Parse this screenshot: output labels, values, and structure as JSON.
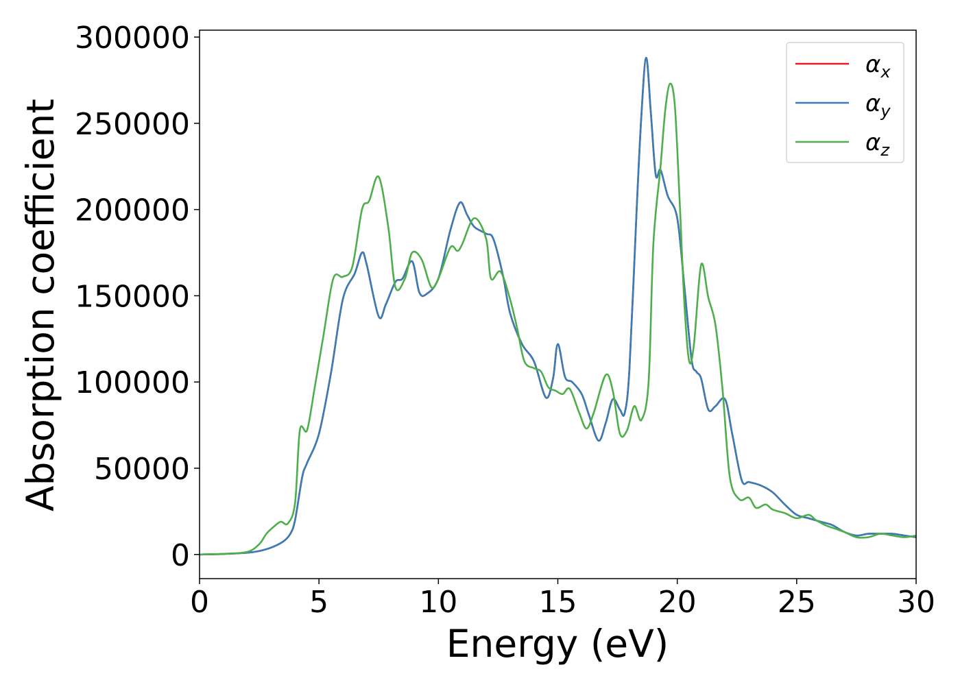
{
  "chart_data": {
    "type": "line",
    "title": "",
    "xlabel": "Energy (eV)",
    "ylabel": "Absorption coefficient",
    "xlim": [
      0,
      30
    ],
    "ylim": [
      -14000,
      304000
    ],
    "xticks": [
      0,
      5,
      10,
      15,
      20,
      25,
      30
    ],
    "xtick_labels": [
      "0",
      "5",
      "10",
      "15",
      "20",
      "25",
      "30"
    ],
    "yticks": [
      0,
      50000,
      100000,
      150000,
      200000,
      250000,
      300000
    ],
    "ytick_labels": [
      "0",
      "50000",
      "100000",
      "150000",
      "200000",
      "250000",
      "300000"
    ],
    "grid": false,
    "legend_position": "top-right",
    "series": [
      {
        "name": "α_x",
        "legend_base": "α",
        "legend_sub": "x",
        "color": "#e41a1c",
        "x": [
          0,
          1,
          2,
          2.5,
          3,
          3.5,
          3.8,
          4.0,
          4.3,
          4.5,
          5.0,
          5.5,
          6.0,
          6.5,
          6.8,
          7.0,
          7.5,
          7.8,
          8.2,
          8.5,
          8.9,
          9.2,
          9.5,
          10.0,
          10.5,
          10.9,
          11.2,
          11.5,
          12.0,
          12.3,
          12.7,
          13.0,
          13.5,
          14.0,
          14.5,
          14.8,
          15.0,
          15.3,
          15.6,
          16.0,
          16.3,
          16.7,
          17.0,
          17.3,
          17.6,
          17.8,
          18.0,
          18.3,
          18.5,
          18.7,
          18.9,
          19.1,
          19.3,
          19.6,
          20.0,
          20.3,
          20.6,
          20.8,
          21.0,
          21.3,
          21.6,
          22.0,
          22.3,
          22.7,
          23.0,
          23.5,
          24.0,
          24.5,
          25.0,
          25.5,
          26.0,
          26.5,
          27.0,
          27.5,
          28.0,
          28.5,
          29.0,
          29.5,
          30.0
        ],
        "y": [
          0,
          300,
          1000,
          2000,
          4000,
          7500,
          12000,
          20000,
          45000,
          53000,
          70000,
          105000,
          148000,
          163000,
          175000,
          168000,
          138000,
          145000,
          158000,
          160000,
          170000,
          152000,
          151000,
          160000,
          188000,
          204000,
          197000,
          190000,
          186000,
          183000,
          162000,
          140000,
          122000,
          112000,
          91000,
          102000,
          122000,
          103000,
          100000,
          93000,
          81000,
          66000,
          76000,
          90000,
          84000,
          82000,
          108000,
          200000,
          255000,
          288000,
          255000,
          220000,
          223000,
          208000,
          195000,
          155000,
          113000,
          106000,
          102000,
          84000,
          86000,
          90000,
          70000,
          43000,
          42000,
          40000,
          36000,
          29000,
          23000,
          21000,
          19000,
          17000,
          13000,
          11000,
          12000,
          12000,
          12000,
          11000,
          10000
        ]
      },
      {
        "name": "α_y",
        "legend_base": "α",
        "legend_sub": "y",
        "color": "#377eb8",
        "x": [
          0,
          1,
          2,
          2.5,
          3,
          3.5,
          3.8,
          4.0,
          4.3,
          4.5,
          5.0,
          5.5,
          6.0,
          6.5,
          6.8,
          7.0,
          7.5,
          7.8,
          8.2,
          8.5,
          8.9,
          9.2,
          9.5,
          10.0,
          10.5,
          10.9,
          11.2,
          11.5,
          12.0,
          12.3,
          12.7,
          13.0,
          13.5,
          14.0,
          14.5,
          14.8,
          15.0,
          15.3,
          15.6,
          16.0,
          16.3,
          16.7,
          17.0,
          17.3,
          17.6,
          17.8,
          18.0,
          18.3,
          18.5,
          18.7,
          18.9,
          19.1,
          19.3,
          19.6,
          20.0,
          20.3,
          20.6,
          20.8,
          21.0,
          21.3,
          21.6,
          22.0,
          22.3,
          22.7,
          23.0,
          23.5,
          24.0,
          24.5,
          25.0,
          25.5,
          26.0,
          26.5,
          27.0,
          27.5,
          28.0,
          28.5,
          29.0,
          29.5,
          30.0
        ],
        "y": [
          0,
          300,
          1000,
          2000,
          4000,
          7500,
          12000,
          20000,
          45000,
          53000,
          70000,
          105000,
          148000,
          163000,
          175000,
          168000,
          138000,
          145000,
          158000,
          160000,
          170000,
          152000,
          151000,
          160000,
          188000,
          204000,
          197000,
          190000,
          186000,
          183000,
          162000,
          140000,
          122000,
          112000,
          91000,
          102000,
          122000,
          103000,
          100000,
          93000,
          81000,
          66000,
          76000,
          90000,
          84000,
          82000,
          108000,
          200000,
          255000,
          288000,
          255000,
          220000,
          223000,
          208000,
          195000,
          155000,
          113000,
          106000,
          102000,
          84000,
          86000,
          90000,
          70000,
          43000,
          42000,
          40000,
          36000,
          29000,
          23000,
          21000,
          19000,
          17000,
          13000,
          11000,
          12000,
          12000,
          12000,
          11000,
          10000
        ]
      },
      {
        "name": "α_z",
        "legend_base": "α",
        "legend_sub": "z",
        "color": "#4daf4a",
        "x": [
          0,
          1,
          2,
          2.5,
          2.8,
          3.1,
          3.4,
          3.7,
          4.0,
          4.2,
          4.5,
          4.8,
          5.2,
          5.6,
          6.0,
          6.4,
          6.8,
          7.1,
          7.5,
          7.9,
          8.2,
          8.6,
          8.9,
          9.3,
          9.7,
          10.0,
          10.5,
          10.8,
          11.0,
          11.5,
          12.0,
          12.2,
          12.6,
          13.0,
          13.3,
          13.6,
          14.0,
          14.3,
          14.6,
          14.9,
          15.2,
          15.5,
          15.9,
          16.2,
          16.5,
          17.0,
          17.3,
          17.6,
          17.9,
          18.2,
          18.5,
          18.8,
          19.0,
          19.3,
          19.5,
          19.7,
          19.9,
          20.1,
          20.3,
          20.5,
          20.7,
          21.0,
          21.3,
          21.6,
          21.9,
          22.2,
          22.6,
          23.0,
          23.3,
          23.7,
          24.0,
          24.5,
          25.0,
          25.5,
          25.8,
          26.2,
          26.6,
          27.0,
          27.5,
          28.0,
          28.5,
          29.0,
          29.5,
          30.0
        ],
        "y": [
          0,
          400,
          1500,
          6000,
          12000,
          16000,
          19000,
          18000,
          30000,
          72000,
          72000,
          95000,
          128000,
          160000,
          161000,
          167000,
          200000,
          205000,
          219000,
          190000,
          155000,
          160000,
          175000,
          171000,
          155000,
          160000,
          178000,
          176000,
          180000,
          195000,
          183000,
          160000,
          164000,
          148000,
          131000,
          112000,
          108000,
          106000,
          97000,
          95000,
          93000,
          96000,
          82000,
          73000,
          82000,
          104000,
          95000,
          70000,
          72000,
          86000,
          78000,
          100000,
          180000,
          225000,
          258000,
          273000,
          260000,
          205000,
          145000,
          112000,
          122000,
          168000,
          149000,
          133000,
          95000,
          45000,
          32000,
          33000,
          27000,
          29000,
          26000,
          24000,
          21000,
          23000,
          20000,
          17000,
          15000,
          13000,
          10000,
          10000,
          12000,
          11000,
          10000,
          11000
        ]
      }
    ]
  }
}
